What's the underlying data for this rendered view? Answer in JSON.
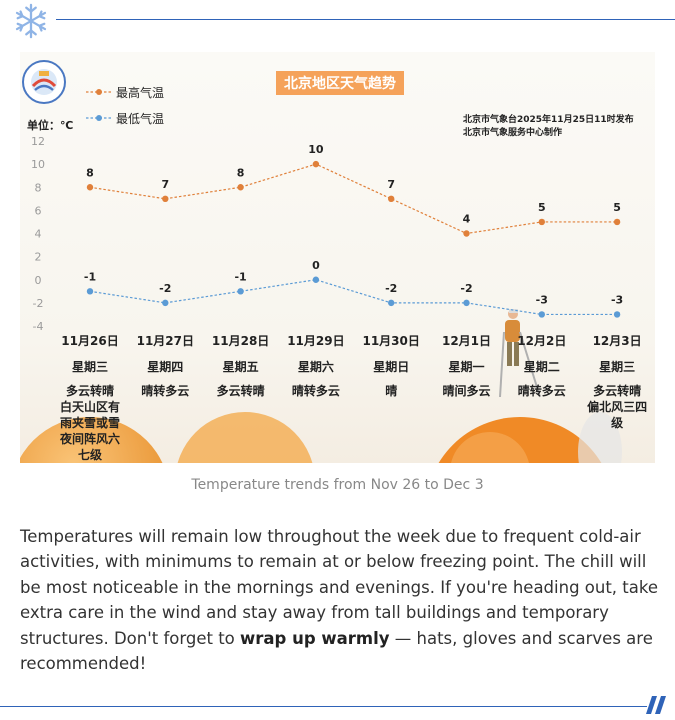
{
  "caption": "Temperature trends from Nov 26 to Dec 3",
  "body": {
    "before": "Temperatures will remain low throughout the week due to frequent cold-air activities, with minimums to remain at or below freezing point. The chill will be most noticeable in the mornings and evenings. If you're heading out, take extra care in the wind and stay away from tall buildings and temporary structures. Don't forget to ",
    "bold": "wrap up warmly",
    "after": " — hats, gloves and scarves are recommended!"
  },
  "colors": {
    "high": "#e0803a",
    "low": "#5b9bd5",
    "title_bg": "#f5a25a",
    "rule": "#2f63b8"
  },
  "icons": {
    "header": "snowflake-icon",
    "footer": "double-slash-icon",
    "chart_logo": "weather-bureau-logo"
  },
  "chart_data": {
    "type": "line",
    "title": "北京地区天气趋势",
    "unit": "单位：℃",
    "note": [
      "北京市气象台2025年11月25日11时发布",
      "北京市气象服务中心制作"
    ],
    "categories": [
      "11月26日",
      "11月27日",
      "11月28日",
      "11月29日",
      "11月30日",
      "12月1日",
      "12月2日",
      "12月3日"
    ],
    "weekdays": [
      "星期三",
      "星期四",
      "星期五",
      "星期六",
      "星期日",
      "星期一",
      "星期二",
      "星期三"
    ],
    "weather": [
      [
        "多云转晴",
        "白天山区有",
        "雨夹雪或雪",
        "夜间阵风六",
        "七级"
      ],
      [
        "晴转多云"
      ],
      [
        "多云转晴"
      ],
      [
        "晴转多云"
      ],
      [
        "晴"
      ],
      [
        "晴间多云"
      ],
      [
        "晴转多云"
      ],
      [
        "多云转晴",
        "偏北风三四",
        "级"
      ]
    ],
    "series": [
      {
        "name": "最高气温",
        "values": [
          8,
          7,
          8,
          10,
          7,
          4,
          5,
          5
        ]
      },
      {
        "name": "最低气温",
        "values": [
          -1,
          -2,
          -1,
          0,
          -2,
          -2,
          -3,
          -3
        ]
      }
    ],
    "yticks": [
      12,
      10,
      8,
      6,
      4,
      2,
      0,
      -2,
      -4
    ],
    "ylim": [
      -4,
      12
    ],
    "grid": false,
    "legend": "top-left"
  }
}
